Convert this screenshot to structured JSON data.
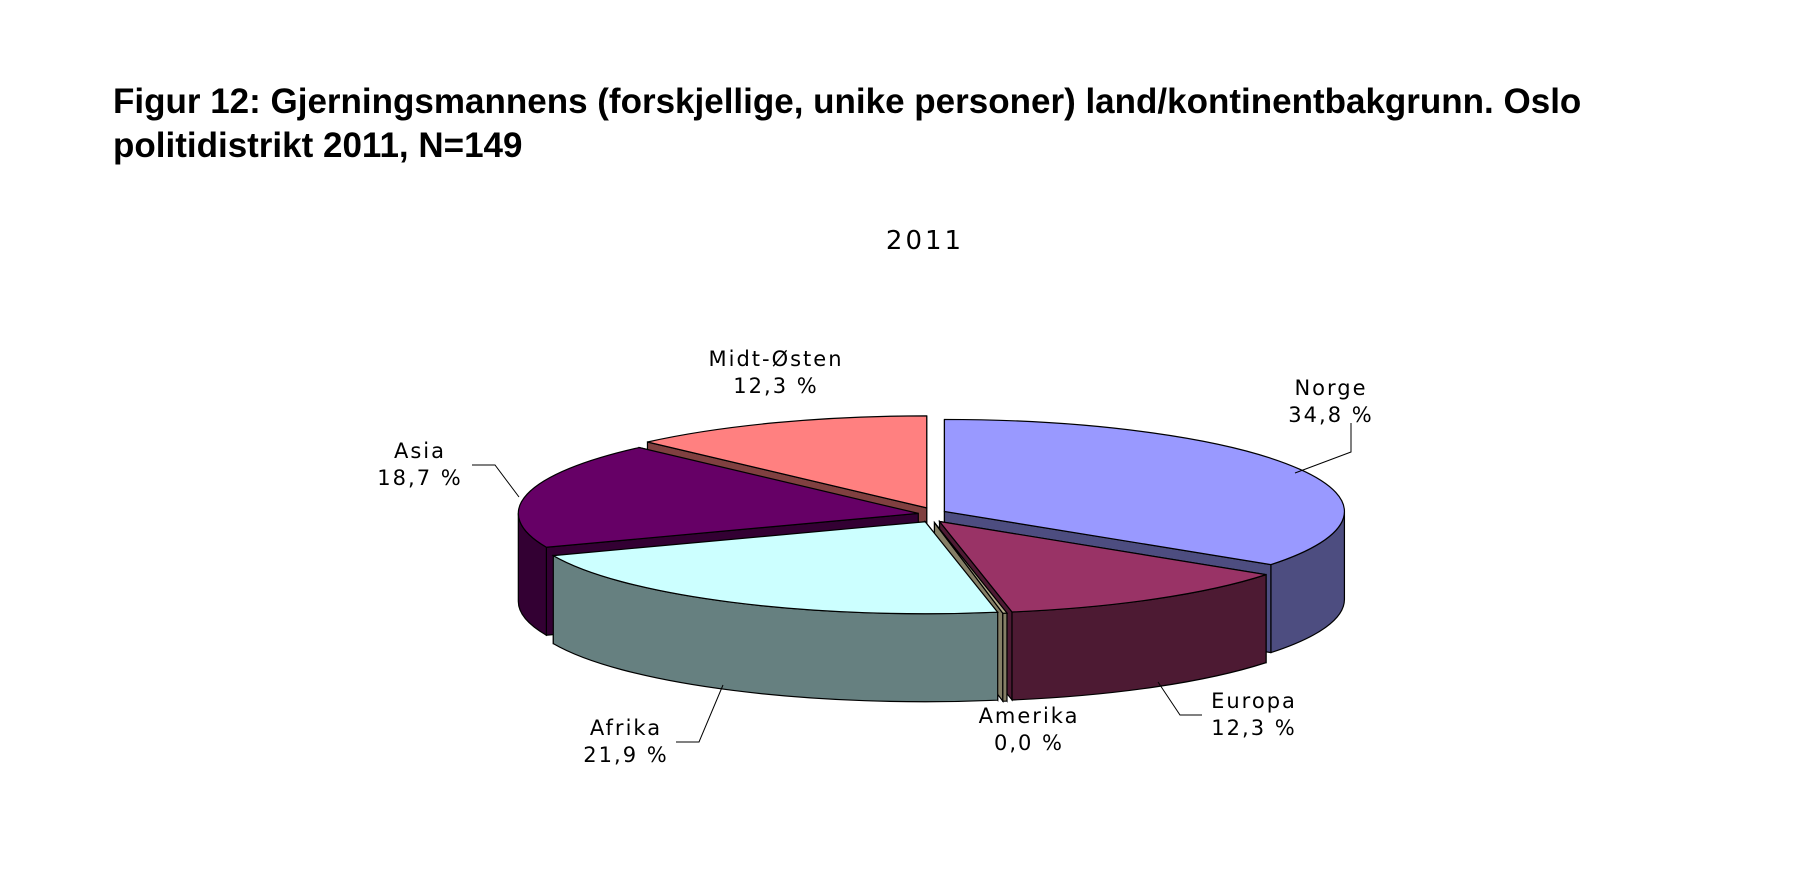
{
  "figure_title": "Figur 12: Gjerningsmannens (forskjellige, unike personer) land/kontinentbakgrunn. Oslo politidistrikt 2011, N=149",
  "chart_data": {
    "type": "pie",
    "title": "2011",
    "unit": "%",
    "slices": [
      {
        "name": "Norge",
        "value": 34.8,
        "label": "34,8 %",
        "color": "#9999FF",
        "side": "#4D4D80"
      },
      {
        "name": "Europa",
        "value": 12.3,
        "label": "12,3 %",
        "color": "#993366",
        "side": "#4D1A33"
      },
      {
        "name": "Amerika",
        "value": 0.0,
        "label": "0,0 %",
        "color": "#B5AD8C",
        "side": "#857F66"
      },
      {
        "name": "Afrika",
        "value": 21.9,
        "label": "21,9 %",
        "color": "#CCFFFF",
        "side": "#668080"
      },
      {
        "name": "Asia",
        "value": 18.7,
        "label": "18,7 %",
        "color": "#660066",
        "side": "#330033"
      },
      {
        "name": "Midt-Østen",
        "value": 12.3,
        "label": "12,3 %",
        "color": "#FF8080",
        "side": "#804040"
      }
    ]
  }
}
